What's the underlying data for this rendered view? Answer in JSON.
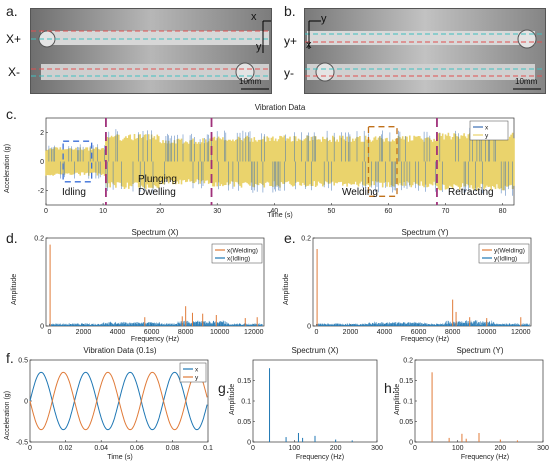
{
  "panel_letters": {
    "a": "a.",
    "b": "b.",
    "c": "c.",
    "d": "d.",
    "e": "e.",
    "f": "f.",
    "g": "g.",
    "h": "h."
  },
  "photo_a": {
    "x_plus": "X+",
    "x_minus": "X-",
    "axis_x": "x",
    "axis_y": "y",
    "scale": "10mm"
  },
  "photo_b": {
    "y_plus": "y+",
    "y_minus": "y-",
    "axis_x": "x",
    "axis_y": "y",
    "scale": "10mm"
  },
  "phases": {
    "idling": "Idling",
    "plunging": "Plunging",
    "dwelling": "Dwelling",
    "welding": "Welding",
    "retracting": "Retracting"
  },
  "colors": {
    "x": "#3c6fb4",
    "y": "#d9a441",
    "blue": "#1f77b4",
    "orange": "#e07b39",
    "magenta": "#a0307a",
    "envelope": "#ead36c"
  },
  "chart_data": [
    {
      "id": "c",
      "type": "line",
      "title": "Vibration Data",
      "xlabel": "Time (s)",
      "ylabel": "Acceleration (g)",
      "xlim": [
        0,
        82
      ],
      "ylim": [
        -3,
        3
      ],
      "xticks": [
        "0",
        "10",
        "20",
        "30",
        "40",
        "50",
        "60",
        "70",
        "80"
      ],
      "yticks": [
        "-2",
        "0",
        "2"
      ],
      "legend": [
        "x",
        "y"
      ],
      "legend_position": "top-right",
      "phase_boundaries_s": [
        10.5,
        29,
        68.5
      ],
      "idling_window_s": [
        3,
        8
      ],
      "welding_window_s": [
        56.5,
        61.5
      ],
      "amplitude_envelope": {
        "idling": 1.0,
        "plunging": 1.9,
        "dwelling": 1.6,
        "welding": 1.8,
        "retracting": 2.0
      }
    },
    {
      "id": "d",
      "type": "line",
      "title": "Spectrum (X)",
      "xlabel": "Frequency (Hz)",
      "ylabel": "Amplitude",
      "xlim": [
        -200,
        12600
      ],
      "ylim": [
        0,
        0.2
      ],
      "xticks": [
        "0",
        "2000",
        "4000",
        "6000",
        "8000",
        "10000",
        "12000"
      ],
      "yticks": [
        "0",
        "0.2"
      ],
      "legend": [
        "x(Welding)",
        "x(Idling)"
      ],
      "legend_position": "top-right",
      "peaks": [
        {
          "x": 40,
          "y": 0.185
        },
        {
          "x": 8000,
          "y": 0.045
        },
        {
          "x": 8400,
          "y": 0.03
        },
        {
          "x": 9000,
          "y": 0.028
        },
        {
          "x": 9800,
          "y": 0.025
        },
        {
          "x": 7800,
          "y": 0.022
        },
        {
          "x": 5600,
          "y": 0.02
        },
        {
          "x": 11500,
          "y": 0.018
        },
        {
          "x": 12200,
          "y": 0.02
        }
      ]
    },
    {
      "id": "e",
      "type": "line",
      "title": "Spectrum (Y)",
      "xlabel": "Frequency (Hz)",
      "ylabel": "Amplitude",
      "xlim": [
        -200,
        12600
      ],
      "ylim": [
        0,
        0.2
      ],
      "xticks": [
        "0",
        "2000",
        "4000",
        "6000",
        "8000",
        "10000",
        "12000"
      ],
      "yticks": [
        "0",
        "0.2"
      ],
      "legend": [
        "y(Welding)",
        "y(Idling)"
      ],
      "legend_position": "top-right",
      "peaks": [
        {
          "x": 40,
          "y": 0.175
        },
        {
          "x": 8000,
          "y": 0.06
        },
        {
          "x": 8200,
          "y": 0.032
        },
        {
          "x": 9000,
          "y": 0.02
        },
        {
          "x": 10000,
          "y": 0.018
        },
        {
          "x": 12000,
          "y": 0.02
        }
      ]
    },
    {
      "id": "f",
      "type": "line",
      "title": "Vibration Data (0.1s)",
      "xlabel": "Time (s)",
      "ylabel": "Acceleration (g)",
      "xlim": [
        0,
        0.1
      ],
      "ylim": [
        -0.5,
        0.5
      ],
      "xticks": [
        "0",
        "0.02",
        "0.04",
        "0.06",
        "0.08",
        "0.1"
      ],
      "yticks": [
        "-0.5",
        "0",
        "0.5"
      ],
      "legend": [
        "x",
        "y"
      ],
      "legend_position": "top-right",
      "series": [
        {
          "name": "x",
          "amplitude": 0.35,
          "frequency_hz": 40,
          "phase_rad": 0.0
        },
        {
          "name": "y",
          "amplitude": 0.35,
          "frequency_hz": 40,
          "phase_rad": 3.14
        }
      ]
    },
    {
      "id": "g",
      "type": "bar",
      "title": "Spectrum (X)",
      "xlabel": "Frequency (Hz)",
      "ylabel": "Amplitude",
      "xlim": [
        0,
        300
      ],
      "ylim": [
        0,
        0.2
      ],
      "xticks": [
        "0",
        "100",
        "200",
        "300"
      ],
      "yticks": [
        "0",
        "0.05",
        "0.1",
        "0.15"
      ],
      "x": [
        40,
        80,
        110,
        120,
        150,
        200,
        240
      ],
      "values": [
        0.18,
        0.012,
        0.022,
        0.01,
        0.015,
        0.006,
        0.004
      ]
    },
    {
      "id": "h",
      "type": "bar",
      "title": "Spectrum (Y)",
      "xlabel": "Frequency (Hz)",
      "ylabel": "Amplitude",
      "xlim": [
        0,
        300
      ],
      "ylim": [
        0,
        0.2
      ],
      "xticks": [
        "0",
        "100",
        "200",
        "300"
      ],
      "yticks": [
        "0",
        "0.05",
        "0.1",
        "0.15",
        "0.2"
      ],
      "x": [
        40,
        80,
        110,
        120,
        150,
        200,
        240
      ],
      "values": [
        0.17,
        0.01,
        0.02,
        0.008,
        0.022,
        0.006,
        0.004
      ]
    }
  ]
}
